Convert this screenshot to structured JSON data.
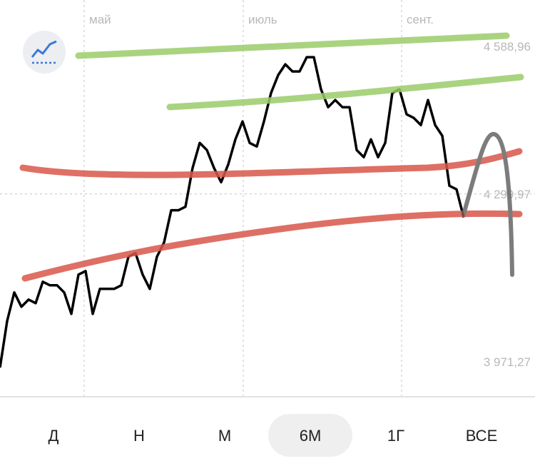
{
  "chart_data": {
    "type": "line",
    "xlim": [
      0,
      75
    ],
    "xticks": [
      {
        "value": 11.8,
        "label": "май"
      },
      {
        "value": 34.1,
        "label": "июль"
      },
      {
        "value": 56.3,
        "label": "сент."
      }
    ],
    "ylim": [
      3904,
      4680
    ],
    "yticks": [
      {
        "value": 4588.96,
        "label": "4 588,96"
      },
      {
        "value": 4299.97,
        "label": "4 299,97"
      },
      {
        "value": 3971.27,
        "label": "3 971,27"
      }
    ],
    "grid": true,
    "color": "#000000",
    "values": [
      3960,
      4051,
      4107,
      4079,
      4093,
      4086,
      4128,
      4121,
      4121,
      4107,
      4065,
      4142,
      4149,
      4065,
      4114,
      4114,
      4114,
      4121,
      4177,
      4184,
      4142,
      4114,
      4177,
      4205,
      4268,
      4268,
      4275,
      4351,
      4400,
      4386,
      4351,
      4323,
      4358,
      4407,
      4442,
      4400,
      4393,
      4442,
      4498,
      4533,
      4554,
      4540,
      4540,
      4568,
      4568,
      4505,
      4470,
      4484,
      4470,
      4470,
      4386,
      4372,
      4407,
      4372,
      4400,
      4498,
      4505,
      4456,
      4449,
      4435,
      4484,
      4435,
      4414,
      4316,
      4309,
      4254
    ]
  },
  "periods": [
    "Д",
    "Н",
    "М",
    "6М",
    "1Г",
    "ВСЕ"
  ],
  "selected_period": 3
}
